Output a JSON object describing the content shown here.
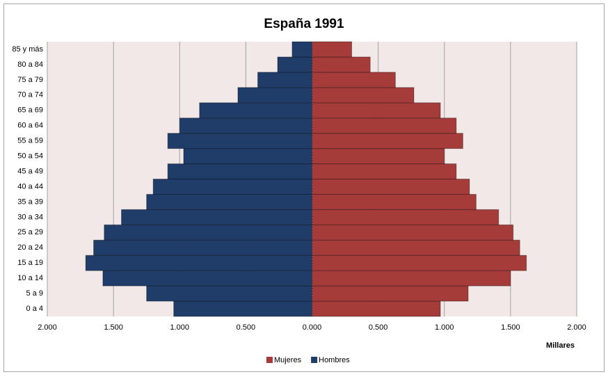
{
  "chart_data": {
    "type": "bar",
    "orientation": "horizontal",
    "title": "España 1991",
    "x_label": "Millares",
    "categories": [
      "0 a 4",
      "5 a 9",
      "10 a 14",
      "15 a 19",
      "20 a 24",
      "25 a 29",
      "30 a 34",
      "35 a 39",
      "40 a 44",
      "45 a 49",
      "50 a 54",
      "55 a 59",
      "60 a 64",
      "65 a 69",
      "70 a 74",
      "75 a 79",
      "80 a 84",
      "85 y más"
    ],
    "series": [
      {
        "name": "Mujeres",
        "color": "#a53c3a",
        "values": [
          0.97,
          1.18,
          1.5,
          1.62,
          1.57,
          1.52,
          1.41,
          1.24,
          1.19,
          1.09,
          1.0,
          1.14,
          1.09,
          0.97,
          0.77,
          0.63,
          0.44,
          0.3
        ]
      },
      {
        "name": "Hombres",
        "color": "#1f3d68",
        "values": [
          -1.045,
          -1.25,
          -1.58,
          -1.71,
          -1.65,
          -1.57,
          -1.44,
          -1.25,
          -1.2,
          -1.09,
          -0.97,
          -1.09,
          -1.0,
          -0.85,
          -0.56,
          -0.41,
          -0.26,
          -0.15
        ]
      }
    ],
    "xlim": [
      -2,
      2
    ],
    "xticks": [
      {
        "value": -2,
        "label": "2.000"
      },
      {
        "value": -1.5,
        "label": "1.500"
      },
      {
        "value": -1,
        "label": "1.000"
      },
      {
        "value": -0.5,
        "label": "0.500"
      },
      {
        "value": 0,
        "label": "0.000"
      },
      {
        "value": 0.5,
        "label": "0.500"
      },
      {
        "value": 1,
        "label": "1.000"
      },
      {
        "value": 1.5,
        "label": "1.500"
      },
      {
        "value": 2,
        "label": "2.000"
      }
    ],
    "grid": true,
    "legend": "bottom"
  }
}
